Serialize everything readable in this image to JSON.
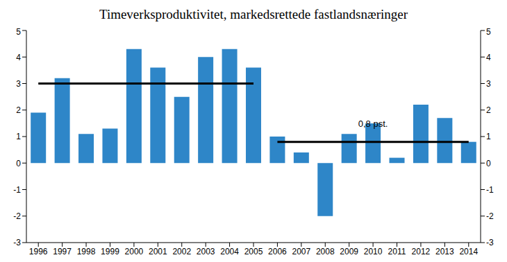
{
  "chart_data": {
    "type": "bar",
    "title": "Timeverksproduktivitet, markedsrettede fastlandsnæringer",
    "categories": [
      "1996",
      "1997",
      "1998",
      "1999",
      "2000",
      "2001",
      "2002",
      "2003",
      "2004",
      "2005",
      "2006",
      "2007",
      "2008",
      "2009",
      "2010",
      "2011",
      "2012",
      "2013",
      "2014"
    ],
    "values": [
      1.9,
      3.2,
      1.1,
      1.3,
      4.3,
      3.6,
      2.5,
      4.0,
      4.3,
      3.6,
      1.0,
      0.4,
      -2.0,
      1.1,
      1.5,
      0.2,
      2.2,
      1.7,
      0.8
    ],
    "color": "#2e86c8",
    "ylim": [
      -3,
      5
    ],
    "yticks": [
      -3,
      -2,
      -1,
      0,
      1,
      2,
      3,
      4,
      5
    ],
    "y2lim": [
      -3,
      5
    ],
    "y2ticks": [
      -3,
      -2,
      -1,
      0,
      1,
      2,
      3,
      4,
      5
    ],
    "reference_lines": [
      {
        "value": 3.0,
        "from": "1996",
        "to": "2005",
        "color": "#000000"
      },
      {
        "value": 0.8,
        "from": "2006",
        "to": "2014",
        "color": "#000000",
        "label": "0,8 pst."
      }
    ]
  }
}
